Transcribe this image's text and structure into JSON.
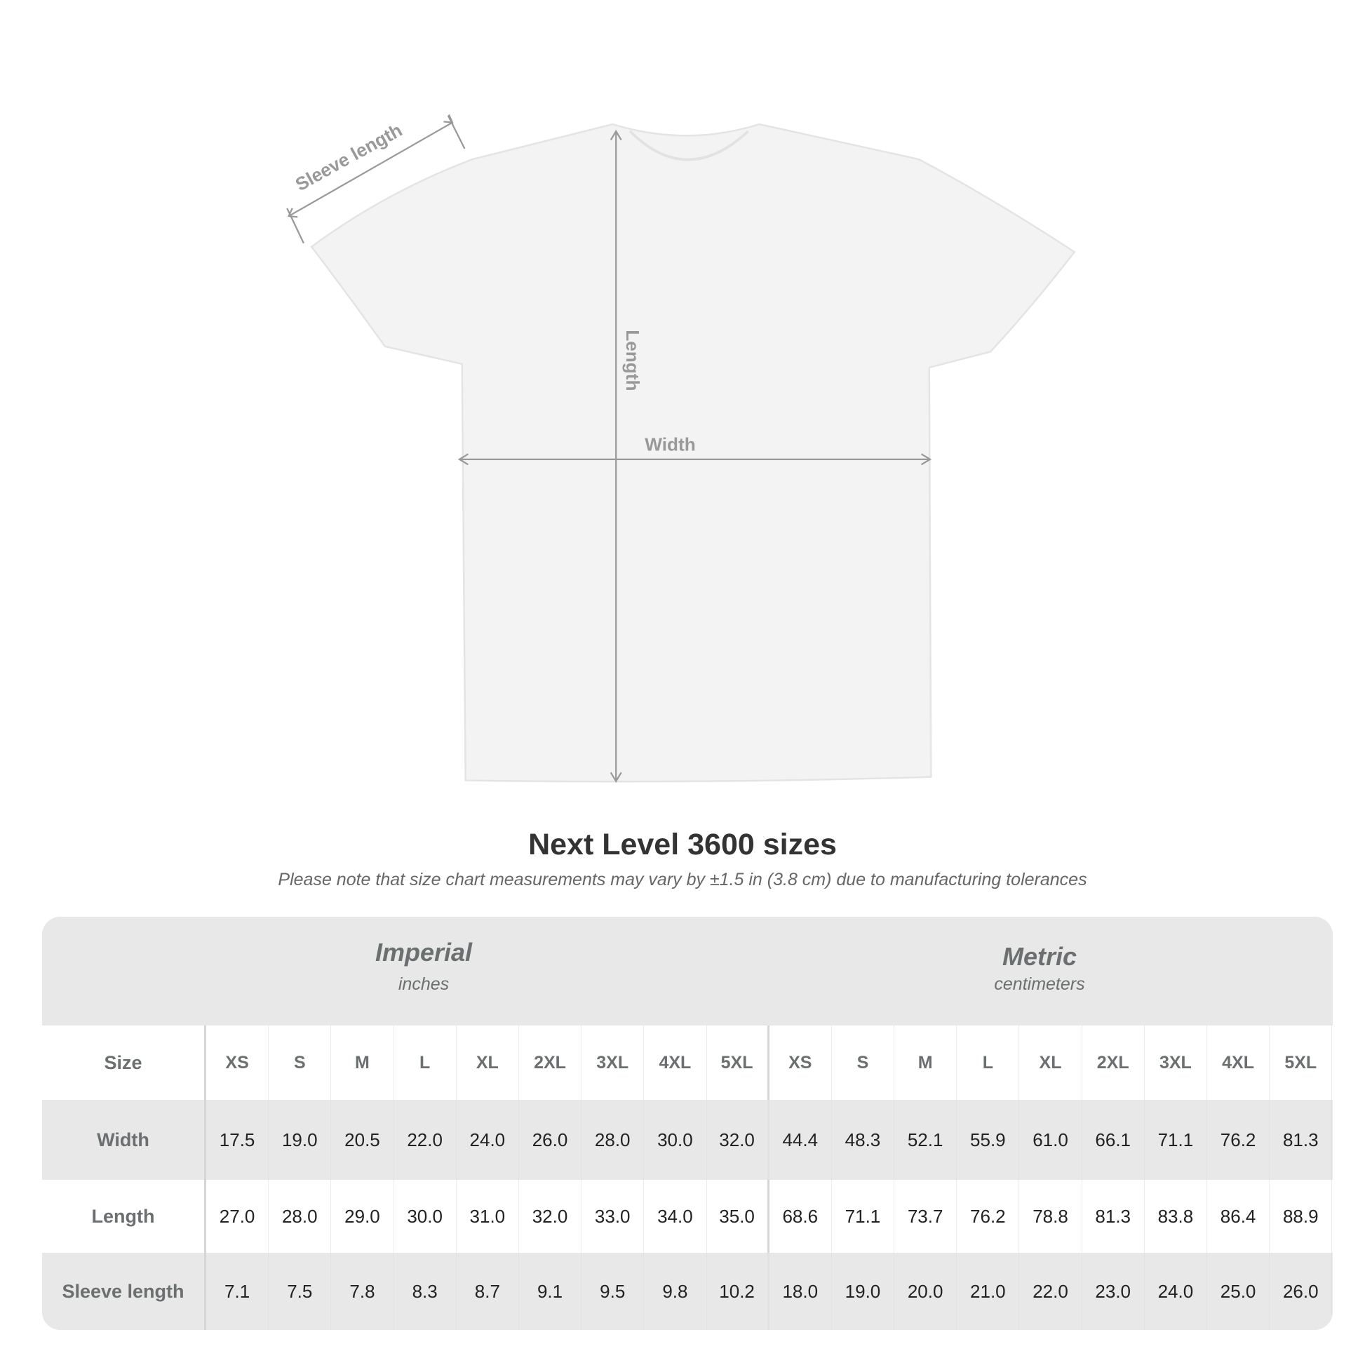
{
  "diagram": {
    "labels": {
      "sleeve": "Sleeve length",
      "length": "Length",
      "width": "Width"
    },
    "colors": {
      "shirt": "#f3f3f3",
      "measure": "#999999"
    }
  },
  "title": "Next Level 3600 sizes",
  "note": "Please note that size chart measurements may vary by ±1.5 in (3.8 cm) due to manufacturing tolerances",
  "table": {
    "imperial": {
      "name": "Imperial",
      "unit": "inches"
    },
    "metric": {
      "name": "Metric",
      "unit": "centimeters"
    },
    "size_label": "Size",
    "sizes": [
      "XS",
      "S",
      "M",
      "L",
      "XL",
      "2XL",
      "3XL",
      "4XL",
      "5XL"
    ],
    "rows": [
      {
        "label": "Width",
        "imperial": [
          "17.5",
          "19.0",
          "20.5",
          "22.0",
          "24.0",
          "26.0",
          "28.0",
          "30.0",
          "32.0"
        ],
        "metric": [
          "44.4",
          "48.3",
          "52.1",
          "55.9",
          "61.0",
          "66.1",
          "71.1",
          "76.2",
          "81.3"
        ]
      },
      {
        "label": "Length",
        "imperial": [
          "27.0",
          "28.0",
          "29.0",
          "30.0",
          "31.0",
          "32.0",
          "33.0",
          "34.0",
          "35.0"
        ],
        "metric": [
          "68.6",
          "71.1",
          "73.7",
          "76.2",
          "78.8",
          "81.3",
          "83.8",
          "86.4",
          "88.9"
        ]
      },
      {
        "label": "Sleeve length",
        "imperial": [
          "7.1",
          "7.5",
          "7.8",
          "8.3",
          "8.7",
          "9.1",
          "9.5",
          "9.8",
          "10.2"
        ],
        "metric": [
          "18.0",
          "19.0",
          "20.0",
          "21.0",
          "22.0",
          "23.0",
          "24.0",
          "25.0",
          "26.0"
        ]
      }
    ]
  }
}
